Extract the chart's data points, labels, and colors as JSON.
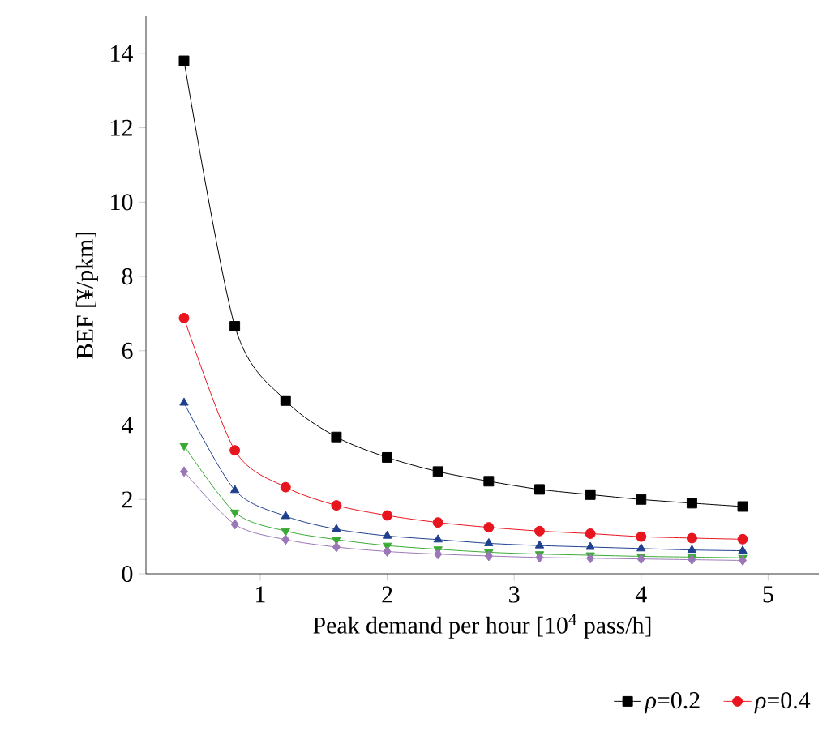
{
  "chart_data": {
    "type": "line",
    "xlabel": "Peak demand per hour [10$^{4}$ pass/h]",
    "ylabel": "BEF [¥/pkm]",
    "x": [
      0.4,
      0.8,
      1.2,
      1.6,
      2.0,
      2.4,
      2.8,
      3.2,
      3.6,
      4.0,
      4.4,
      4.8
    ],
    "series": [
      {
        "name": "*ρ*=0.2",
        "color": "#000000",
        "marker": "square",
        "values": [
          13.8,
          6.66,
          4.66,
          3.68,
          3.13,
          2.75,
          2.49,
          2.27,
          2.13,
          2.0,
          1.9,
          1.81
        ]
      },
      {
        "name": "*ρ*=0.4",
        "color": "#e8141e",
        "marker": "circle",
        "values": [
          6.88,
          3.32,
          2.33,
          1.84,
          1.57,
          1.38,
          1.25,
          1.15,
          1.08,
          1.0,
          0.96,
          0.93
        ]
      },
      {
        "color": "#1f3f8f",
        "marker": "triangle",
        "values": [
          4.6,
          2.25,
          1.55,
          1.2,
          1.02,
          0.92,
          0.82,
          0.76,
          0.72,
          0.68,
          0.64,
          0.62
        ]
      },
      {
        "color": "#3aaa35",
        "marker": "triangle down",
        "values": [
          3.45,
          1.65,
          1.15,
          0.92,
          0.76,
          0.66,
          0.58,
          0.53,
          0.5,
          0.47,
          0.45,
          0.43
        ]
      },
      {
        "color": "#9b77b8",
        "marker": "diamond",
        "values": [
          2.75,
          1.33,
          0.92,
          0.72,
          0.6,
          0.53,
          0.48,
          0.44,
          0.42,
          0.4,
          0.38,
          0.36
        ]
      }
    ],
    "xlim": [
      0.1,
      5.4
    ],
    "ylim": [
      0,
      15
    ],
    "xticks": [
      1,
      2,
      3,
      4,
      5
    ],
    "yticks": [
      0,
      2,
      4,
      6,
      8,
      10,
      12,
      14
    ],
    "grid": false,
    "legend": "bottom"
  }
}
